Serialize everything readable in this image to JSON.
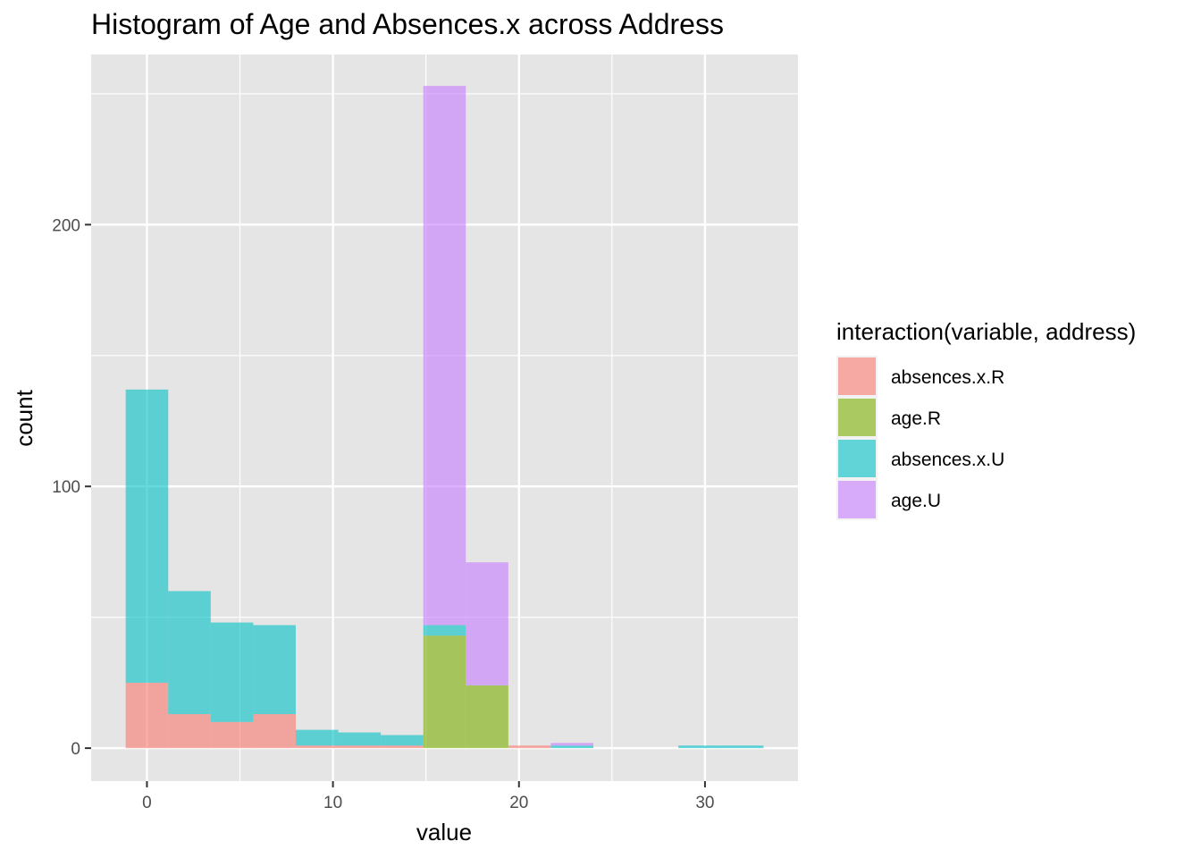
{
  "chart_data": {
    "type": "histogram",
    "title": "Histogram of Age and Absences.x across Address",
    "xlabel": "value",
    "ylabel": "count",
    "xlim": [
      -3.0,
      35.0
    ],
    "ylim": [
      -12.6,
      265
    ],
    "x_ticks": [
      0,
      10,
      20,
      30
    ],
    "y_ticks": [
      0,
      100,
      200
    ],
    "grid": true,
    "legend_title": "interaction(variable, address)",
    "legend_position": "right",
    "bins": [
      [
        -1.143,
        1.143
      ],
      [
        1.143,
        3.429
      ],
      [
        3.429,
        5.714
      ],
      [
        5.714,
        8.0
      ],
      [
        8.0,
        10.286
      ],
      [
        10.286,
        12.571
      ],
      [
        12.571,
        14.857
      ],
      [
        14.857,
        17.143
      ],
      [
        17.143,
        19.429
      ],
      [
        19.429,
        21.714
      ],
      [
        21.714,
        24.0
      ],
      [
        24.0,
        26.286
      ],
      [
        26.286,
        28.571
      ],
      [
        28.571,
        30.857
      ],
      [
        30.857,
        33.143
      ]
    ],
    "series": [
      {
        "name": "absences.x.R",
        "color": "#F8766D",
        "values": [
          25,
          13,
          10,
          13,
          1,
          1,
          1,
          0,
          0,
          1,
          0,
          0,
          0,
          0,
          0
        ]
      },
      {
        "name": "age.R",
        "color": "#7CAE00",
        "values": [
          0,
          0,
          0,
          0,
          0,
          0,
          0,
          43,
          24,
          0,
          0,
          0,
          0,
          0,
          0
        ]
      },
      {
        "name": "absences.x.U",
        "color": "#00BFC4",
        "values": [
          112,
          47,
          38,
          34,
          6,
          5,
          4,
          4,
          0,
          0,
          1,
          0,
          0,
          1,
          1
        ]
      },
      {
        "name": "age.U",
        "color": "#C77CFF",
        "values": [
          0,
          0,
          0,
          0,
          0,
          0,
          0,
          206,
          47,
          0,
          1,
          0,
          0,
          0,
          0
        ]
      }
    ]
  }
}
